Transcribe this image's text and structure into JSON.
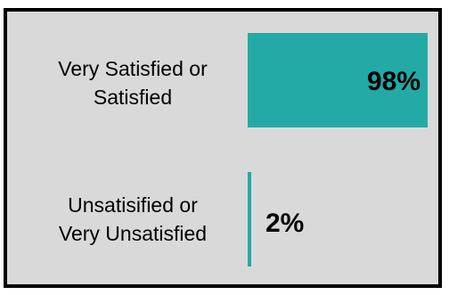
{
  "chart_data": {
    "type": "bar",
    "orientation": "horizontal",
    "categories": [
      [
        "Very Satisfied or",
        "Satisfied"
      ],
      [
        "Unsatisified or",
        "Very Unsatisfied"
      ]
    ],
    "values": [
      98,
      2
    ],
    "value_labels": [
      "98%",
      "2%"
    ],
    "title": "",
    "xlabel": "",
    "ylabel": "",
    "xlim": [
      0,
      100
    ],
    "grid": false,
    "legend": "none"
  },
  "colors": {
    "bar": "#23a9a6",
    "background": "#d9d9d9",
    "border": "#000000"
  }
}
